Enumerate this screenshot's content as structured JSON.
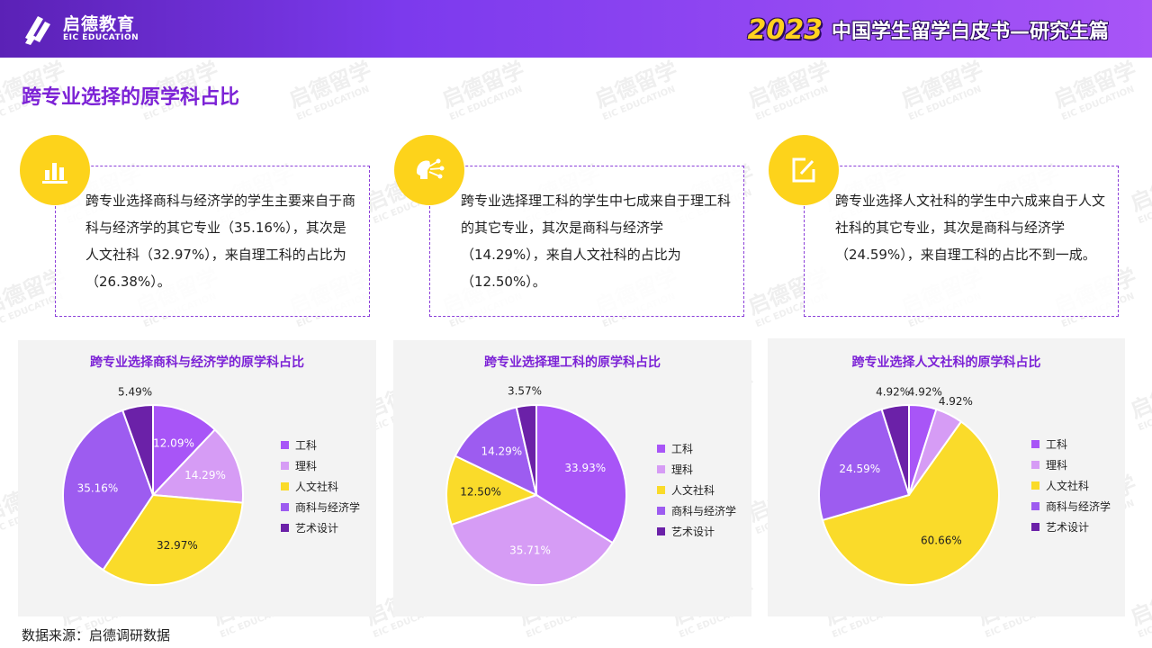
{
  "header": {
    "logo_cn": "启德教育",
    "logo_en": "EIC EDUCATION",
    "year": "2023",
    "title": "中国学生留学白皮书—研究生篇"
  },
  "section_title": "跨专业选择的原学科占比",
  "cards": [
    {
      "icon": "bar-chart-icon",
      "text": "跨专业选择商科与经济学的学生主要来自于商科与经济学的其它专业（35.16%），其次是人文社科（32.97%），来自理工科的占比为（26.38%）。"
    },
    {
      "icon": "brain-network-icon",
      "text": "跨专业选择理工科的学生中七成来自于理工科的其它专业，其次是商科与经济学（14.29%），来自人文社科的占比为（12.50%）。"
    },
    {
      "icon": "edit-icon",
      "text": "跨专业选择人文社科的学生中六成来自于人文社科的其它专业，其次是商科与经济学（24.59%），来自理工科的占比不到一成。"
    }
  ],
  "legend": [
    "工科",
    "理科",
    "人文社科",
    "商科与经济学",
    "艺术设计"
  ],
  "colors": [
    "#a855f7",
    "#d69cf5",
    "#fadb2a",
    "#9d5cf0",
    "#6b21a8"
  ],
  "chart_data": [
    {
      "type": "pie",
      "title": "跨专业选择商科与经济学的原学科占比",
      "categories": [
        "工科",
        "理科",
        "人文社科",
        "商科与经济学",
        "艺术设计"
      ],
      "values": [
        12.09,
        14.29,
        32.97,
        35.16,
        5.49
      ],
      "labels": [
        "12.09%",
        "14.29%",
        "32.97%",
        "35.16%",
        "5.49%"
      ]
    },
    {
      "type": "pie",
      "title": "跨专业选择理工科的原学科占比",
      "categories": [
        "工科",
        "理科",
        "人文社科",
        "商科与经济学",
        "艺术设计"
      ],
      "values": [
        33.93,
        35.71,
        12.5,
        14.29,
        3.57
      ],
      "labels": [
        "33.93%",
        "35.71%",
        "12.50%",
        "14.29%",
        "3.57%"
      ]
    },
    {
      "type": "pie",
      "title": "跨专业选择人文社科的原学科占比",
      "categories": [
        "工科",
        "理科",
        "人文社科",
        "商科与经济学",
        "艺术设计"
      ],
      "values": [
        4.92,
        4.92,
        60.66,
        24.59,
        4.92
      ],
      "labels": [
        "4.92%",
        "4.92%",
        "60.66%",
        "24.59%",
        "4.92%"
      ]
    }
  ],
  "footer": "数据来源：启德调研数据",
  "watermark": {
    "cn": "启德留学",
    "en": "EIC EDUCATION"
  }
}
